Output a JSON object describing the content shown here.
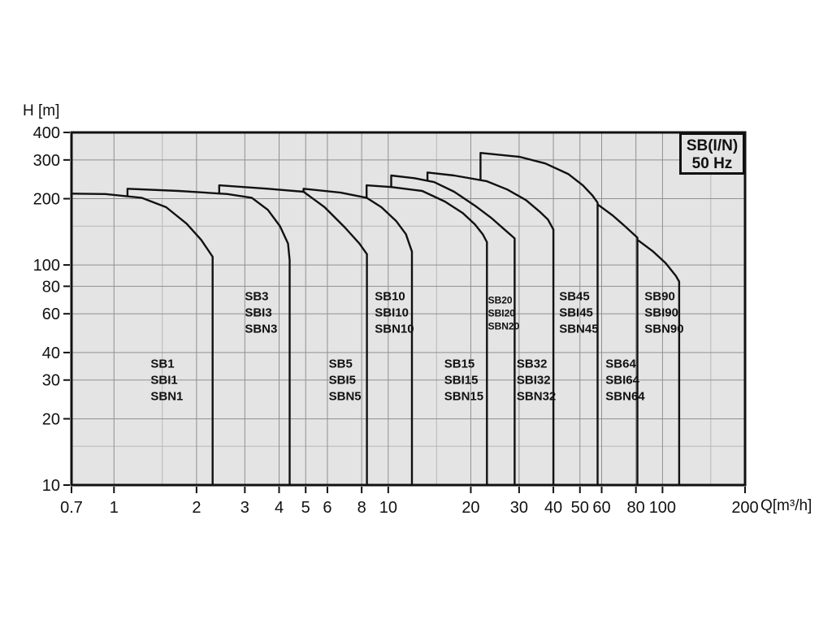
{
  "page": {
    "background": "#ffffff"
  },
  "chart_data": {
    "type": "area",
    "title": "SB(I/N) 50 Hz",
    "title_box": {
      "line1": "SB(I/N)",
      "line2": "50 Hz"
    },
    "xlabel": "Q[m³/h]",
    "ylabel": "H [m]",
    "x_scale": "log",
    "y_scale": "log",
    "xlim": [
      0.7,
      200
    ],
    "ylim": [
      10,
      400
    ],
    "grid": true,
    "x_ticks": [
      {
        "v": 0.7,
        "label": "0.7"
      },
      {
        "v": 1,
        "label": "1"
      },
      {
        "v": 2,
        "label": "2"
      },
      {
        "v": 3,
        "label": "3"
      },
      {
        "v": 4,
        "label": "4"
      },
      {
        "v": 5,
        "label": "5"
      },
      {
        "v": 6,
        "label": "6"
      },
      {
        "v": 8,
        "label": "8"
      },
      {
        "v": 10,
        "label": "10"
      },
      {
        "v": 20,
        "label": "20"
      },
      {
        "v": 30,
        "label": "30"
      },
      {
        "v": 40,
        "label": "40"
      },
      {
        "v": 50,
        "label": "50"
      },
      {
        "v": 60,
        "label": "60"
      },
      {
        "v": 80,
        "label": "80"
      },
      {
        "v": 100,
        "label": "100"
      },
      {
        "v": 200,
        "label": "200"
      }
    ],
    "y_ticks": [
      {
        "v": 400,
        "label": "400"
      },
      {
        "v": 300,
        "label": "300"
      },
      {
        "v": 200,
        "label": "200"
      },
      {
        "v": 100,
        "label": "100"
      },
      {
        "v": 80,
        "label": "80"
      },
      {
        "v": 60,
        "label": "60"
      },
      {
        "v": 40,
        "label": "40"
      },
      {
        "v": 30,
        "label": "30"
      },
      {
        "v": 20,
        "label": "20"
      },
      {
        "v": 10,
        "label": "10"
      }
    ],
    "minor_gridlines": {
      "q": [
        1.5,
        15,
        150
      ],
      "h": [
        15,
        150
      ]
    },
    "colors": {
      "plot_bg": "#e4e4e4",
      "grid": "#909090",
      "grid_minor": "#b8b8b8",
      "stroke": "#111111",
      "text": "#111111"
    },
    "series": [
      {
        "name": "SB1",
        "models": [
          "SB1",
          "SBI1",
          "SBN1"
        ],
        "label_anchor": {
          "q": 1.36,
          "h": 30
        },
        "points": [
          [
            0.7,
            211
          ],
          [
            0.93,
            210
          ],
          [
            1.26,
            202
          ],
          [
            1.55,
            183
          ],
          [
            1.84,
            154
          ],
          [
            2.08,
            130
          ],
          [
            2.29,
            109
          ],
          [
            2.29,
            10
          ]
        ]
      },
      {
        "name": "SB3",
        "models": [
          "SB3",
          "SBI3",
          "SBN3"
        ],
        "label_anchor": {
          "q": 3.0,
          "h": 61
        },
        "points": [
          [
            1.12,
            206
          ],
          [
            1.12,
            222
          ],
          [
            1.72,
            217
          ],
          [
            2.59,
            210
          ],
          [
            3.18,
            202
          ],
          [
            3.64,
            178
          ],
          [
            4.03,
            150
          ],
          [
            4.31,
            125
          ],
          [
            4.37,
            105
          ],
          [
            4.37,
            10
          ]
        ]
      },
      {
        "name": "SB5",
        "models": [
          "SB5",
          "SBI5",
          "SBN5"
        ],
        "label_anchor": {
          "q": 6.07,
          "h": 30
        },
        "points": [
          [
            2.42,
            211
          ],
          [
            2.42,
            230
          ],
          [
            3.64,
            222
          ],
          [
            4.91,
            215
          ],
          [
            5.86,
            183
          ],
          [
            6.95,
            148
          ],
          [
            7.85,
            125
          ],
          [
            8.36,
            112
          ],
          [
            8.36,
            10
          ]
        ]
      },
      {
        "name": "SB10",
        "models": [
          "SB10",
          "SBI10",
          "SBN10"
        ],
        "label_anchor": {
          "q": 8.93,
          "h": 61
        },
        "points": [
          [
            4.91,
            215
          ],
          [
            4.91,
            222
          ],
          [
            6.71,
            213
          ],
          [
            8.34,
            202
          ],
          [
            9.44,
            183
          ],
          [
            10.7,
            158
          ],
          [
            11.6,
            138
          ],
          [
            12.2,
            115
          ],
          [
            12.2,
            10
          ]
        ]
      },
      {
        "name": "SB15",
        "models": [
          "SB15",
          "SBI15",
          "SBN15"
        ],
        "label_anchor": {
          "q": 16,
          "h": 30
        },
        "points": [
          [
            8.34,
            202
          ],
          [
            8.34,
            230
          ],
          [
            10.25,
            226
          ],
          [
            13.3,
            217
          ],
          [
            16.1,
            194
          ],
          [
            18.7,
            172
          ],
          [
            20.7,
            153
          ],
          [
            22.1,
            138
          ],
          [
            22.9,
            127
          ],
          [
            22.9,
            10
          ]
        ]
      },
      {
        "name": "SB20",
        "models": [
          "SB20",
          "SBI20",
          "SBN20"
        ],
        "label_anchor": {
          "q": 23.1,
          "h": 61
        },
        "small_label": true,
        "points": [
          [
            10.25,
            226
          ],
          [
            10.25,
            255
          ],
          [
            12.4,
            248
          ],
          [
            14.7,
            238
          ],
          [
            17.4,
            215
          ],
          [
            20.7,
            186
          ],
          [
            23.7,
            164
          ],
          [
            26.2,
            147
          ],
          [
            28.9,
            132
          ],
          [
            28.9,
            10
          ]
        ]
      },
      {
        "name": "SB32",
        "models": [
          "SB32",
          "SBI32",
          "SBN32"
        ],
        "label_anchor": {
          "q": 29.4,
          "h": 30
        },
        "points": [
          [
            13.9,
            243
          ],
          [
            13.9,
            263
          ],
          [
            17.4,
            255
          ],
          [
            22.9,
            240
          ],
          [
            27.2,
            220
          ],
          [
            31.8,
            197
          ],
          [
            35.6,
            175
          ],
          [
            38.2,
            161
          ],
          [
            40,
            145
          ],
          [
            40,
            10
          ]
        ]
      },
      {
        "name": "SB45",
        "models": [
          "SB45",
          "SBI45",
          "SBN45"
        ],
        "label_anchor": {
          "q": 42,
          "h": 61
        },
        "points": [
          [
            21.7,
            244
          ],
          [
            21.7,
            323
          ],
          [
            30.1,
            310
          ],
          [
            37.4,
            289
          ],
          [
            45.3,
            259
          ],
          [
            51.2,
            230
          ],
          [
            55.5,
            207
          ],
          [
            58,
            192
          ],
          [
            58,
            10
          ]
        ]
      },
      {
        "name": "SB64",
        "models": [
          "SB64",
          "SBI64",
          "SBN64"
        ],
        "label_anchor": {
          "q": 62,
          "h": 30
        },
        "points": [
          [
            58.5,
            187
          ],
          [
            65.8,
            168
          ],
          [
            72.9,
            150
          ],
          [
            81,
            133
          ],
          [
            81,
            10
          ]
        ]
      },
      {
        "name": "SB90",
        "models": [
          "SB90",
          "SBI90",
          "SBN90"
        ],
        "label_anchor": {
          "q": 86,
          "h": 61
        },
        "points": [
          [
            81.7,
            129
          ],
          [
            92.5,
            115
          ],
          [
            102.6,
            102
          ],
          [
            112,
            89
          ],
          [
            115,
            84
          ],
          [
            115,
            10
          ]
        ]
      }
    ]
  }
}
